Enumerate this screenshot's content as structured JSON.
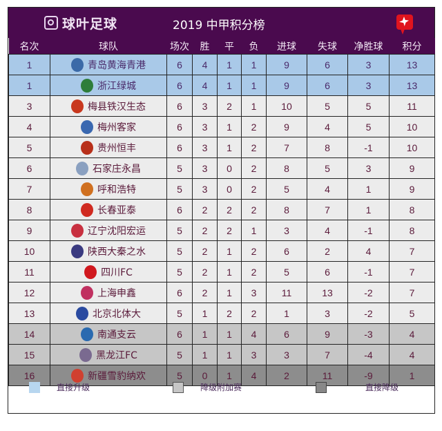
{
  "header": {
    "brand": "球叶足球",
    "title": "2019 中甲积分榜"
  },
  "columns": [
    "名次",
    "球队",
    "场次",
    "胜",
    "平",
    "负",
    "进球",
    "失球",
    "净胜球",
    "积分"
  ],
  "colors": {
    "title_bg": "#4a0a4e",
    "promotion": "#a9c9e8",
    "normal": "#ececec",
    "playoff": "#c6c6c6",
    "relegation": "#8d8d8d",
    "badge": "#e0141e"
  },
  "rows": [
    {
      "rank": "1",
      "team": "青岛黄海青港",
      "logo": "#3b6aa8",
      "played": "6",
      "w": "4",
      "d": "1",
      "l": "1",
      "gf": "9",
      "ga": "6",
      "gd": "3",
      "pts": "13",
      "zone": "promo"
    },
    {
      "rank": "1",
      "team": "浙江绿城",
      "logo": "#2e7d3a",
      "played": "6",
      "w": "4",
      "d": "1",
      "l": "1",
      "gf": "9",
      "ga": "6",
      "gd": "3",
      "pts": "13",
      "zone": "promo"
    },
    {
      "rank": "3",
      "team": "梅县铁汉生态",
      "logo": "#c8381e",
      "played": "6",
      "w": "3",
      "d": "2",
      "l": "1",
      "gf": "10",
      "ga": "5",
      "gd": "5",
      "pts": "11",
      "zone": "normal"
    },
    {
      "rank": "4",
      "team": "梅州客家",
      "logo": "#3a68b0",
      "played": "6",
      "w": "3",
      "d": "1",
      "l": "2",
      "gf": "9",
      "ga": "4",
      "gd": "5",
      "pts": "10",
      "zone": "normal"
    },
    {
      "rank": "5",
      "team": "贵州恒丰",
      "logo": "#b8301a",
      "played": "6",
      "w": "3",
      "d": "1",
      "l": "2",
      "gf": "7",
      "ga": "8",
      "gd": "-1",
      "pts": "10",
      "zone": "normal"
    },
    {
      "rank": "6",
      "team": "石家庄永昌",
      "logo": "#8aa0c0",
      "played": "5",
      "w": "3",
      "d": "0",
      "l": "2",
      "gf": "8",
      "ga": "5",
      "gd": "3",
      "pts": "9",
      "zone": "normal"
    },
    {
      "rank": "7",
      "team": "呼和浩特",
      "logo": "#d07020",
      "played": "5",
      "w": "3",
      "d": "0",
      "l": "2",
      "gf": "5",
      "ga": "4",
      "gd": "1",
      "pts": "9",
      "zone": "normal"
    },
    {
      "rank": "8",
      "team": "长春亚泰",
      "logo": "#d02a20",
      "played": "6",
      "w": "2",
      "d": "2",
      "l": "2",
      "gf": "8",
      "ga": "7",
      "gd": "1",
      "pts": "8",
      "zone": "normal"
    },
    {
      "rank": "9",
      "team": "辽宁沈阳宏运",
      "logo": "#c83040",
      "played": "5",
      "w": "2",
      "d": "2",
      "l": "1",
      "gf": "3",
      "ga": "4",
      "gd": "-1",
      "pts": "8",
      "zone": "normal"
    },
    {
      "rank": "10",
      "team": "陕西大秦之水",
      "logo": "#3a3a80",
      "played": "5",
      "w": "2",
      "d": "1",
      "l": "2",
      "gf": "6",
      "ga": "2",
      "gd": "4",
      "pts": "7",
      "zone": "normal"
    },
    {
      "rank": "11",
      "team": "四川FC",
      "logo": "#d0181e",
      "played": "5",
      "w": "2",
      "d": "1",
      "l": "2",
      "gf": "5",
      "ga": "6",
      "gd": "-1",
      "pts": "7",
      "zone": "normal"
    },
    {
      "rank": "12",
      "team": "上海申鑫",
      "logo": "#c03060",
      "played": "6",
      "w": "2",
      "d": "1",
      "l": "3",
      "gf": "11",
      "ga": "13",
      "gd": "-2",
      "pts": "7",
      "zone": "normal"
    },
    {
      "rank": "13",
      "team": "北京北体大",
      "logo": "#2a4aa0",
      "played": "5",
      "w": "1",
      "d": "2",
      "l": "2",
      "gf": "1",
      "ga": "3",
      "gd": "-2",
      "pts": "5",
      "zone": "normal"
    },
    {
      "rank": "14",
      "team": "南通支云",
      "logo": "#2a6ab0",
      "played": "6",
      "w": "1",
      "d": "1",
      "l": "4",
      "gf": "6",
      "ga": "9",
      "gd": "-3",
      "pts": "4",
      "zone": "playoff"
    },
    {
      "rank": "15",
      "team": "黑龙江FC",
      "logo": "#7a6a90",
      "played": "5",
      "w": "1",
      "d": "1",
      "l": "3",
      "gf": "3",
      "ga": "7",
      "gd": "-4",
      "pts": "4",
      "zone": "playoff"
    },
    {
      "rank": "16",
      "team": "新疆雪豹纳欢",
      "logo": "#d04030",
      "played": "5",
      "w": "0",
      "d": "1",
      "l": "4",
      "gf": "2",
      "ga": "11",
      "gd": "-9",
      "pts": "1",
      "zone": "relegate"
    }
  ],
  "legend": [
    {
      "label": "直接升级",
      "color": "#b7d6ef",
      "border": "#b7d6ef"
    },
    {
      "label": "降级附加赛",
      "color": "#c6c6c6",
      "border": "#555555"
    },
    {
      "label": "直接降级",
      "color": "#888888",
      "border": "#444444"
    }
  ],
  "chart_data": {
    "type": "table",
    "title": "2019 中甲积分榜",
    "columns": [
      "名次",
      "球队",
      "场次",
      "胜",
      "平",
      "负",
      "进球",
      "失球",
      "净胜球",
      "积分"
    ],
    "rows": [
      [
        1,
        "青岛黄海青港",
        6,
        4,
        1,
        1,
        9,
        6,
        3,
        13
      ],
      [
        1,
        "浙江绿城",
        6,
        4,
        1,
        1,
        9,
        6,
        3,
        13
      ],
      [
        3,
        "梅县铁汉生态",
        6,
        3,
        2,
        1,
        10,
        5,
        5,
        11
      ],
      [
        4,
        "梅州客家",
        6,
        3,
        1,
        2,
        9,
        4,
        5,
        10
      ],
      [
        5,
        "贵州恒丰",
        6,
        3,
        1,
        2,
        7,
        8,
        -1,
        10
      ],
      [
        6,
        "石家庄永昌",
        5,
        3,
        0,
        2,
        8,
        5,
        3,
        9
      ],
      [
        7,
        "呼和浩特",
        5,
        3,
        0,
        2,
        5,
        4,
        1,
        9
      ],
      [
        8,
        "长春亚泰",
        6,
        2,
        2,
        2,
        8,
        7,
        1,
        8
      ],
      [
        9,
        "辽宁沈阳宏运",
        5,
        2,
        2,
        1,
        3,
        4,
        -1,
        8
      ],
      [
        10,
        "陕西大秦之水",
        5,
        2,
        1,
        2,
        6,
        2,
        4,
        7
      ],
      [
        11,
        "四川FC",
        5,
        2,
        1,
        2,
        5,
        6,
        -1,
        7
      ],
      [
        12,
        "上海申鑫",
        6,
        2,
        1,
        3,
        11,
        13,
        -2,
        7
      ],
      [
        13,
        "北京北体大",
        5,
        1,
        2,
        2,
        1,
        3,
        -2,
        5
      ],
      [
        14,
        "南通支云",
        6,
        1,
        1,
        4,
        6,
        9,
        -3,
        4
      ],
      [
        15,
        "黑龙江FC",
        5,
        1,
        1,
        3,
        3,
        7,
        -4,
        4
      ],
      [
        16,
        "新疆雪豹纳欢",
        5,
        0,
        1,
        4,
        2,
        11,
        -9,
        1
      ]
    ],
    "legend": [
      "直接升级",
      "降级附加赛",
      "直接降级"
    ]
  }
}
